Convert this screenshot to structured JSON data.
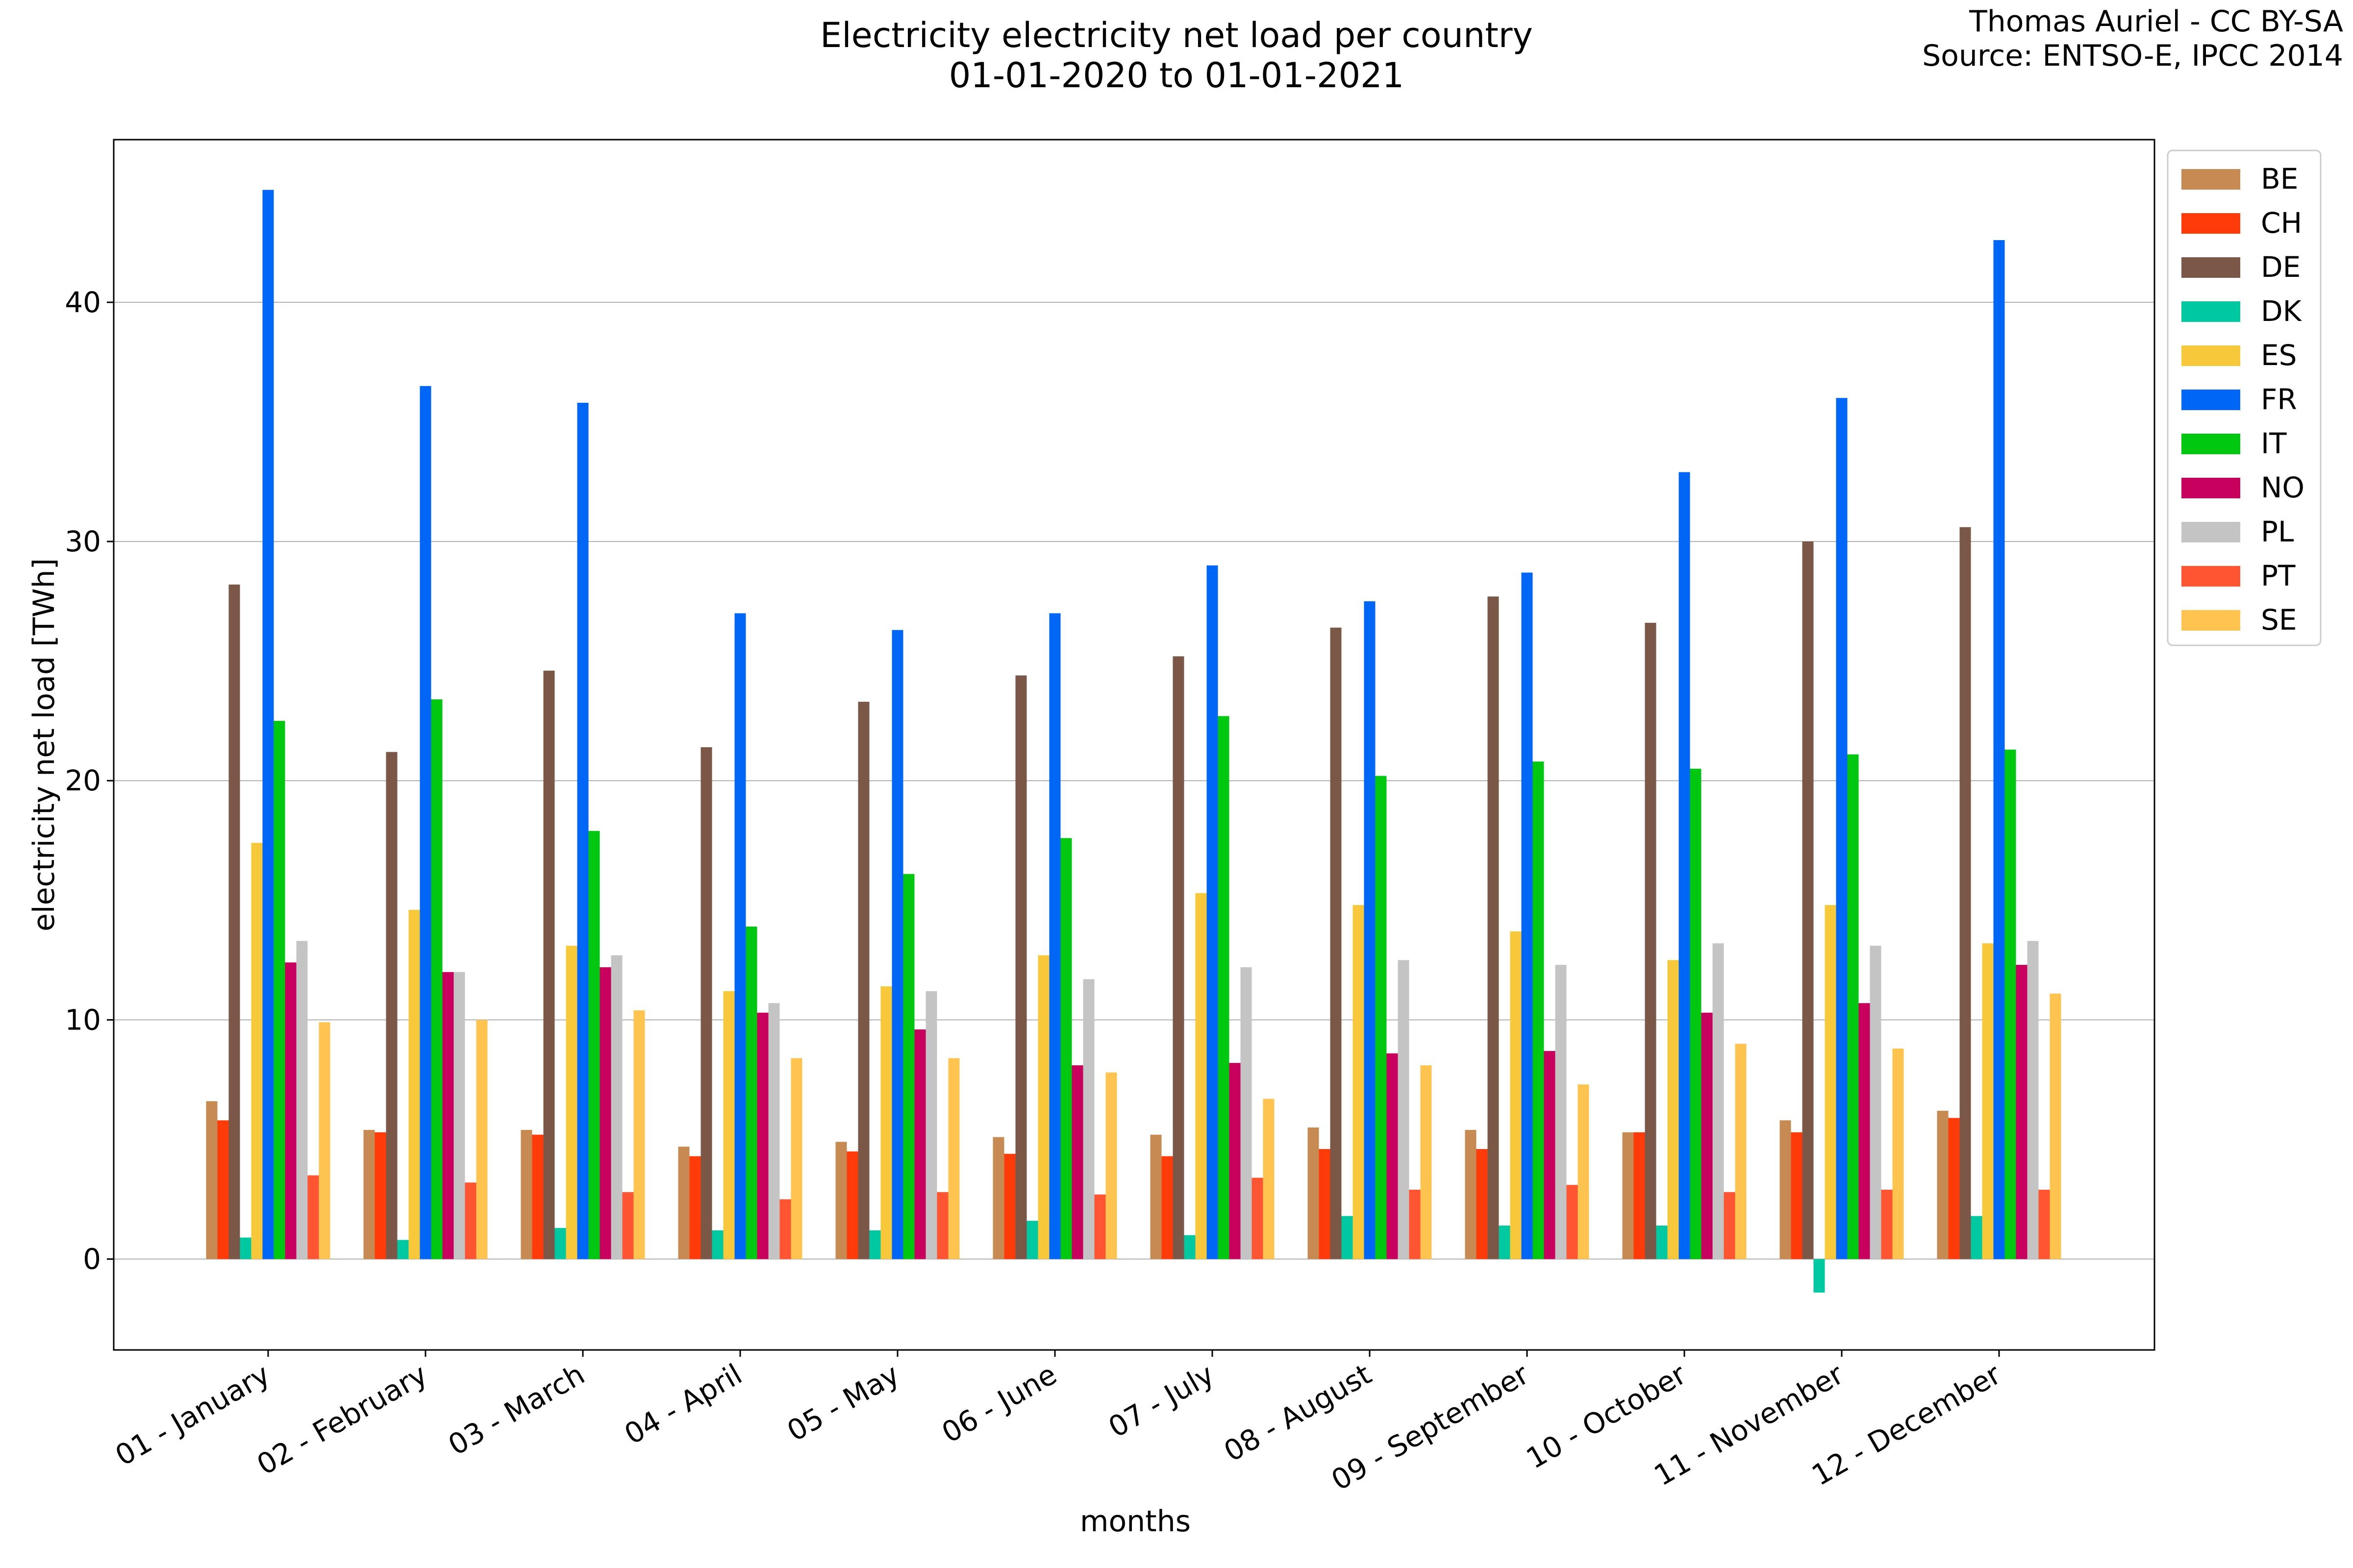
{
  "chart_data": {
    "type": "bar",
    "title_line1": "Electricity electricity net load per country",
    "title_line2": "01-01-2020 to 01-01-2021",
    "credit_line1": "Thomas Auriel - CC BY-SA",
    "credit_line2": "Source: ENTSO-E, IPCC 2014",
    "xlabel": "months",
    "ylabel": "electricity net load [TWh]",
    "ylim": [
      -3.8,
      46.8
    ],
    "yticks": [
      0,
      10,
      20,
      30,
      40
    ],
    "grid": "horizontal",
    "legend_position": "right",
    "categories": [
      "01 - January",
      "02 - February",
      "03 - March",
      "04 - April",
      "05 - May",
      "06 - June",
      "07 - July",
      "08 - August",
      "09 - September",
      "10 - October",
      "11 - November",
      "12 - December"
    ],
    "series": [
      {
        "name": "BE",
        "color": "#C68A52",
        "values": [
          6.6,
          5.4,
          5.4,
          4.7,
          4.9,
          5.1,
          5.2,
          5.5,
          5.4,
          5.3,
          5.8,
          6.2
        ]
      },
      {
        "name": "CH",
        "color": "#FF3B0A",
        "values": [
          5.8,
          5.3,
          5.2,
          4.3,
          4.5,
          4.4,
          4.3,
          4.6,
          4.6,
          5.3,
          5.3,
          5.9
        ]
      },
      {
        "name": "DE",
        "color": "#7B5748",
        "values": [
          28.2,
          21.2,
          24.6,
          21.4,
          23.3,
          24.4,
          25.2,
          26.4,
          27.7,
          26.6,
          30.0,
          30.6
        ]
      },
      {
        "name": "DK",
        "color": "#00C9A1",
        "values": [
          0.9,
          0.8,
          1.3,
          1.2,
          1.2,
          1.6,
          1.0,
          1.8,
          1.4,
          1.4,
          -1.4,
          1.8
        ]
      },
      {
        "name": "ES",
        "color": "#F7C93A",
        "values": [
          17.4,
          14.6,
          13.1,
          11.2,
          11.4,
          12.7,
          15.3,
          14.8,
          13.7,
          12.5,
          14.8,
          13.2
        ]
      },
      {
        "name": "FR",
        "color": "#0066F5",
        "values": [
          44.7,
          36.5,
          35.8,
          27.0,
          26.3,
          27.0,
          29.0,
          27.5,
          28.7,
          32.9,
          36.0,
          42.6
        ]
      },
      {
        "name": "IT",
        "color": "#00C811",
        "values": [
          22.5,
          23.4,
          17.9,
          13.9,
          16.1,
          17.6,
          22.7,
          20.2,
          20.8,
          20.5,
          21.1,
          21.3
        ]
      },
      {
        "name": "NO",
        "color": "#C8005E",
        "values": [
          12.4,
          12.0,
          12.2,
          10.3,
          9.6,
          8.1,
          8.2,
          8.6,
          8.7,
          10.3,
          10.7,
          12.3
        ]
      },
      {
        "name": "PL",
        "color": "#C4C4C4",
        "values": [
          13.3,
          12.0,
          12.7,
          10.7,
          11.2,
          11.7,
          12.2,
          12.5,
          12.3,
          13.2,
          13.1,
          13.3
        ]
      },
      {
        "name": "PT",
        "color": "#FF5533",
        "values": [
          3.5,
          3.2,
          2.8,
          2.5,
          2.8,
          2.7,
          3.4,
          2.9,
          3.1,
          2.8,
          2.9,
          2.9
        ]
      },
      {
        "name": "SE",
        "color": "#FFC34F",
        "values": [
          9.9,
          10.0,
          10.4,
          8.4,
          8.4,
          7.8,
          6.7,
          8.1,
          7.3,
          9.0,
          8.8,
          11.1
        ]
      }
    ]
  }
}
